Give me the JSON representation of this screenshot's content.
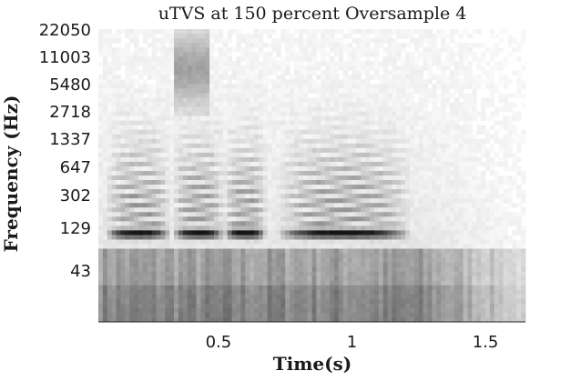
{
  "chart_data": {
    "type": "heatmap",
    "title": "uTVS at 150 percent Oversample 4",
    "xlabel": "Time(s)",
    "ylabel": "Frequency (Hz)",
    "x_ticks": [
      {
        "value": 0.5,
        "label": "0.5"
      },
      {
        "value": 1,
        "label": "1"
      },
      {
        "value": 1.5,
        "label": "1.5"
      }
    ],
    "y_ticks": [
      "22050",
      "11003",
      "5480",
      "2718",
      "1337",
      "647",
      "302",
      "129",
      "43"
    ],
    "xlim": [
      0.05,
      1.65
    ],
    "colormap": "grayscale (dark = high energy)",
    "grid": false,
    "features": {
      "voiced_segments_s": [
        [
          0.08,
          0.32
        ],
        [
          0.33,
          0.52
        ],
        [
          0.52,
          0.68
        ],
        [
          0.72,
          1.22
        ]
      ],
      "strongest_energy_band_hz": 129,
      "low_energy_region_s": [
        1.3,
        1.65
      ]
    }
  }
}
